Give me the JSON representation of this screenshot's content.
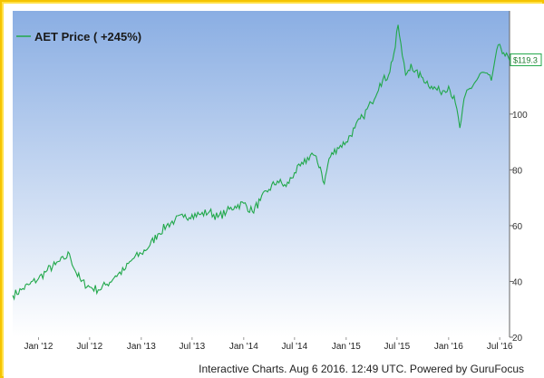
{
  "footer_text": "Interactive Charts. Aug 6 2016. 12:49 UTC. Powered by GuruFocus",
  "colors": {
    "frame": "#ffe14a",
    "plot_top": "#8aaee3",
    "plot_bottom": "#ffffff",
    "line": "#21a84a"
  },
  "chart_data": {
    "type": "line",
    "title": "",
    "xlabel": "",
    "ylabel": "",
    "x_ticks": [
      "Jan '12",
      "Jul '12",
      "Jan '13",
      "Jul '13",
      "Jan '14",
      "Jul '14",
      "Jan '15",
      "Jul '15",
      "Jan '16",
      "Jul '16"
    ],
    "y_ticks": [
      20,
      40,
      60,
      80,
      100
    ],
    "ylim": [
      20,
      137
    ],
    "grid": false,
    "legend": "top-left",
    "last_price_label": "$119.3",
    "series": [
      {
        "name": "AET Price ( +245%)",
        "x": [
          "2011-10-01",
          "2011-11-01",
          "2011-12-01",
          "2012-01-01",
          "2012-02-01",
          "2012-03-01",
          "2012-04-01",
          "2012-04-20",
          "2012-05-10",
          "2012-06-01",
          "2012-07-01",
          "2012-08-01",
          "2012-09-01",
          "2012-10-01",
          "2012-11-01",
          "2012-12-01",
          "2013-01-01",
          "2013-02-01",
          "2013-03-01",
          "2013-04-01",
          "2013-05-01",
          "2013-06-01",
          "2013-07-01",
          "2013-08-01",
          "2013-09-01",
          "2013-10-01",
          "2013-11-01",
          "2013-12-01",
          "2014-01-01",
          "2014-02-01",
          "2014-03-01",
          "2014-04-01",
          "2014-05-01",
          "2014-06-01",
          "2014-07-01",
          "2014-08-01",
          "2014-09-01",
          "2014-10-01",
          "2014-10-15",
          "2014-11-01",
          "2014-12-01",
          "2015-01-01",
          "2015-02-01",
          "2015-03-01",
          "2015-04-01",
          "2015-05-01",
          "2015-06-01",
          "2015-06-25",
          "2015-07-05",
          "2015-07-20",
          "2015-08-01",
          "2015-08-20",
          "2015-09-01",
          "2015-10-01",
          "2015-11-01",
          "2015-12-01",
          "2016-01-01",
          "2016-01-25",
          "2016-02-10",
          "2016-03-01",
          "2016-04-01",
          "2016-05-01",
          "2016-06-01",
          "2016-06-15",
          "2016-07-01",
          "2016-07-15",
          "2016-08-05"
        ],
        "y": [
          35,
          37,
          39,
          41,
          44,
          46,
          48,
          50,
          44,
          40,
          38,
          37,
          39,
          42,
          44,
          48,
          50,
          53,
          57,
          60,
          62,
          63,
          64,
          64,
          65,
          63,
          65,
          67,
          68,
          65,
          69,
          73,
          76,
          74,
          79,
          82,
          86,
          81,
          75,
          84,
          88,
          90,
          95,
          99,
          104,
          111,
          114,
          124,
          132,
          121,
          114,
          118,
          115,
          113,
          110,
          108,
          110,
          104,
          95,
          107,
          111,
          115,
          112,
          120,
          125,
          122,
          119.3
        ]
      }
    ]
  }
}
